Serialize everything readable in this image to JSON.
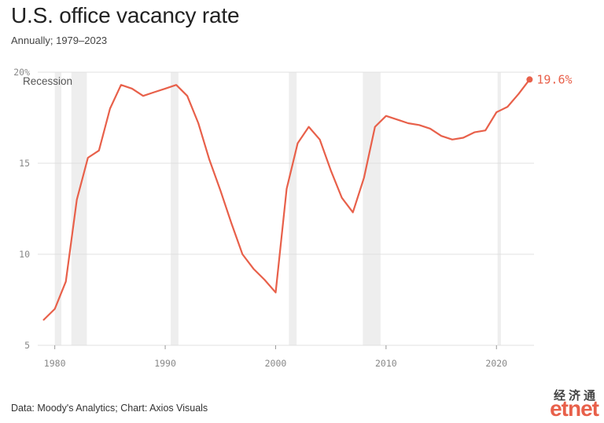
{
  "header": {
    "title": "U.S. office vacancy rate",
    "subtitle": "Annually; 1979–2023"
  },
  "footer": {
    "source": "Data: Moody's Analytics; Chart: Axios Visuals"
  },
  "logo": {
    "chinese_text": "经济通",
    "english_text": "etnet"
  },
  "colors": {
    "line": "#e8604a",
    "recession_band": "#eeeeee",
    "grid": "#e0e0e0",
    "tick_text": "#888888"
  },
  "chart_data": {
    "type": "line",
    "title": "U.S. office vacancy rate",
    "subtitle": "Annually; 1979–2023",
    "xlim": [
      1978.6,
      2023.4
    ],
    "ylim": [
      5,
      20
    ],
    "y_ticks": [
      5,
      10,
      15,
      20
    ],
    "y_tick_labels": [
      "5",
      "10",
      "15",
      "20%"
    ],
    "x_ticks": [
      1980,
      1990,
      2000,
      2010,
      2020
    ],
    "x_tick_labels": [
      "1980",
      "1990",
      "2000",
      "2010",
      "2020"
    ],
    "grid": true,
    "recession_label": "Recession",
    "recessions": [
      [
        1980.0,
        1980.6
      ],
      [
        1981.5,
        1982.9
      ],
      [
        1990.5,
        1991.2
      ],
      [
        2001.2,
        2001.9
      ],
      [
        2007.9,
        2009.5
      ],
      [
        2020.1,
        2020.4
      ]
    ],
    "end_label": "19.6%",
    "series": [
      {
        "x": [
          1979,
          1980,
          1981,
          1982,
          1983,
          1984,
          1985,
          1986,
          1987,
          1988,
          1989,
          1990,
          1991,
          1992,
          1993,
          1994,
          1995,
          1996,
          1997,
          1998,
          1999,
          2000,
          2001,
          2002,
          2003,
          2004,
          2005,
          2006,
          2007,
          2008,
          2009,
          2010,
          2011,
          2012,
          2013,
          2014,
          2015,
          2016,
          2017,
          2018,
          2019,
          2020,
          2021,
          2022,
          2023
        ],
        "values": [
          6.4,
          7.0,
          8.5,
          13.0,
          15.3,
          15.7,
          18.0,
          19.3,
          19.1,
          18.7,
          18.9,
          19.1,
          19.3,
          18.7,
          17.2,
          15.2,
          13.5,
          11.7,
          10.0,
          9.2,
          8.6,
          7.9,
          13.6,
          16.1,
          17.0,
          16.3,
          14.6,
          13.1,
          12.3,
          14.2,
          17.0,
          17.6,
          17.4,
          17.2,
          17.1,
          16.9,
          16.5,
          16.3,
          16.4,
          16.7,
          16.8,
          17.8,
          18.1,
          18.8,
          19.6
        ]
      }
    ]
  }
}
